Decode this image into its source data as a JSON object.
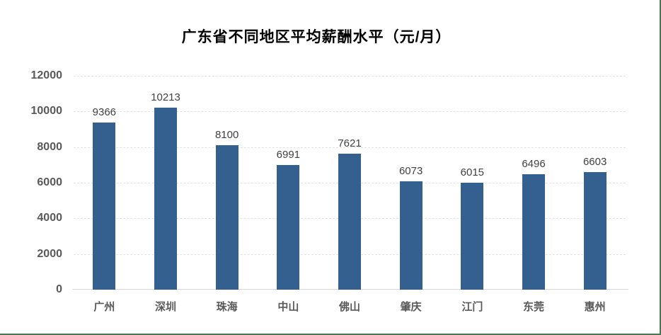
{
  "frame": {
    "edge_border_color": "#47794F",
    "background_color": "#ffffff"
  },
  "chart_data": {
    "type": "bar",
    "title": "广东省不同地区平均薪酬水平（元/月）",
    "categories": [
      "广州",
      "深圳",
      "珠海",
      "中山",
      "佛山",
      "肇庆",
      "江门",
      "东莞",
      "惠州"
    ],
    "values": [
      9366,
      10213,
      8100,
      6991,
      7621,
      6073,
      6015,
      6496,
      6603
    ],
    "xlabel": "",
    "ylabel": "",
    "ylim": [
      0,
      12000
    ],
    "yticks": [
      0,
      2000,
      4000,
      6000,
      8000,
      10000,
      12000
    ],
    "grid": true,
    "gridline_style": "dashed",
    "gridline_color": "#e2e2e2",
    "axis_line_color": "#d6d6d6",
    "bar_color": "#346090",
    "title_color": "#000000",
    "tick_label_color": "#595959",
    "data_label_color": "#404040",
    "legend": "none",
    "data_labels": true
  }
}
